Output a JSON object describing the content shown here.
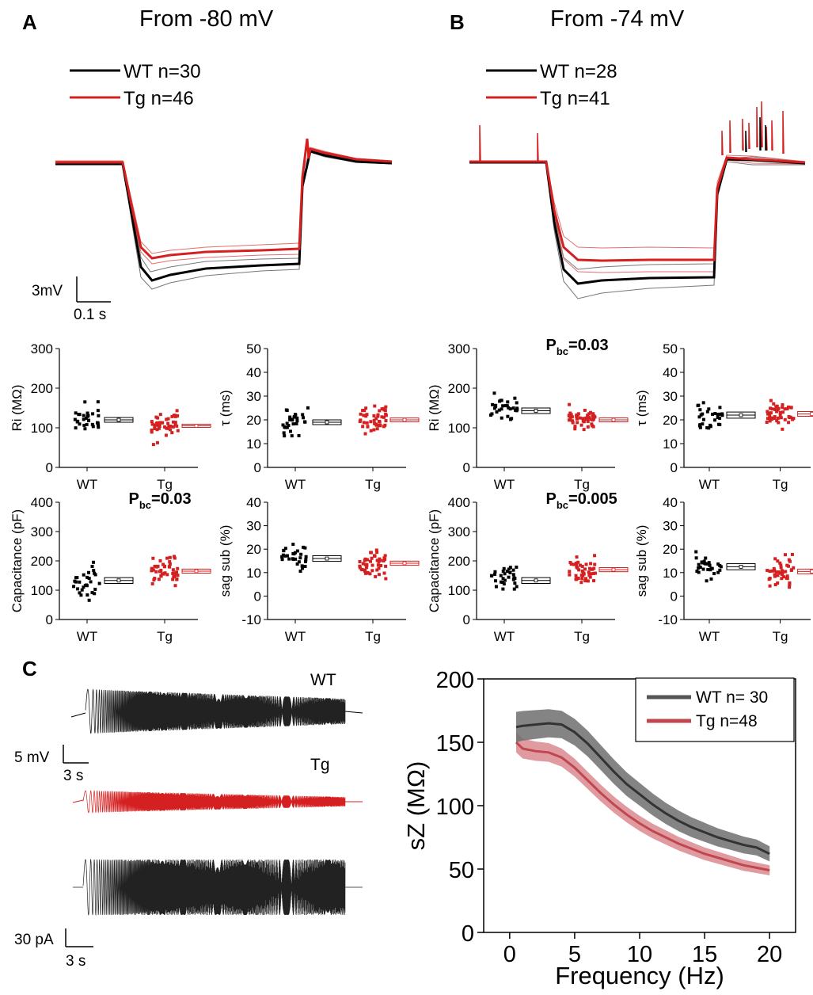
{
  "colors": {
    "wt": "#000000",
    "tg": "#d42020",
    "wt_band": "#555555",
    "tg_band": "#c0474f",
    "tg_fill": "#d98a8e",
    "wt_fill": "#6e6e6e"
  },
  "panel_a": {
    "letter": "A",
    "title": "From -80 mV",
    "legend": [
      "WT n=30",
      "Tg n=46"
    ],
    "scale": {
      "v": "3mV",
      "t": "0.1 s"
    }
  },
  "panel_b": {
    "letter": "B",
    "title": "From -74 mV",
    "legend": [
      "WT n=28",
      "Tg n=41"
    ]
  },
  "panel_c": {
    "letter": "C",
    "trace_wt_label": "WT",
    "trace_tg_label": "Tg",
    "scale_mv": {
      "v": "5 mV",
      "t": "3 s"
    },
    "scale_pa": {
      "v": "30 pA",
      "t": "3 s"
    }
  },
  "chart_data": [
    {
      "type": "scatter",
      "panel": "A",
      "ylabel_text": "Ri  (M",
      "ylabel_symbol": "Ω",
      "ylabel_end": ")",
      "ylim": [
        0,
        300
      ],
      "yticks": [
        "0",
        "100",
        "200",
        "300"
      ],
      "categories": [
        "WT",
        "Tg"
      ],
      "series": [
        {
          "name": "WT",
          "mean": 120,
          "sem": 6
        },
        {
          "name": "Tg",
          "mean": 105,
          "sem": 4
        }
      ]
    },
    {
      "type": "scatter",
      "panel": "A",
      "ylabel_text": "τ (ms)",
      "ylim": [
        0,
        50
      ],
      "yticks": [
        "0",
        "10",
        "20",
        "30",
        "40",
        "50"
      ],
      "categories": [
        "WT",
        "Tg"
      ],
      "series": [
        {
          "name": "WT",
          "mean": 19,
          "sem": 1
        },
        {
          "name": "Tg",
          "mean": 20,
          "sem": 0.8
        }
      ]
    },
    {
      "type": "scatter",
      "panel": "A",
      "ylabel_text": "Capacitance (pF)",
      "ylim": [
        0,
        400
      ],
      "yticks": [
        "0",
        "100",
        "200",
        "300",
        "400"
      ],
      "categories": [
        "WT",
        "Tg"
      ],
      "annotation": {
        "main": "P",
        "sub": "bc",
        "rest": "=0.03"
      },
      "series": [
        {
          "name": "WT",
          "mean": 133,
          "sem": 10
        },
        {
          "name": "Tg",
          "mean": 165,
          "sem": 7
        }
      ]
    },
    {
      "type": "scatter",
      "panel": "A",
      "ylabel_text": "sag sub (%)",
      "ylim": [
        -10,
        40
      ],
      "yticks": [
        "-10",
        "0",
        "10",
        "20",
        "30",
        "40"
      ],
      "categories": [
        "WT",
        "Tg"
      ],
      "series": [
        {
          "name": "WT",
          "mean": 16,
          "sem": 1.2
        },
        {
          "name": "Tg",
          "mean": 14,
          "sem": 0.9
        }
      ]
    },
    {
      "type": "scatter",
      "panel": "B",
      "ylabel_text": "Ri  (M",
      "ylabel_symbol": "Ω",
      "ylabel_end": ")",
      "ylim": [
        0,
        300
      ],
      "yticks": [
        "0",
        "100",
        "200",
        "300"
      ],
      "categories": [
        "WT",
        "Tg"
      ],
      "annotation": {
        "main": "P",
        "sub": "bc",
        "rest": "=0.03"
      },
      "series": [
        {
          "name": "WT",
          "mean": 143,
          "sem": 7
        },
        {
          "name": "Tg",
          "mean": 120,
          "sem": 5
        }
      ]
    },
    {
      "type": "scatter",
      "panel": "B",
      "ylabel_text": "τ (ms)",
      "ylim": [
        0,
        50
      ],
      "yticks": [
        "0",
        "10",
        "20",
        "30",
        "40",
        "50"
      ],
      "categories": [
        "WT",
        "Tg"
      ],
      "series": [
        {
          "name": "WT",
          "mean": 22,
          "sem": 1.3
        },
        {
          "name": "Tg",
          "mean": 22.5,
          "sem": 1
        }
      ]
    },
    {
      "type": "scatter",
      "panel": "B",
      "ylabel_text": "Capacitance (pF)",
      "ylim": [
        0,
        400
      ],
      "yticks": [
        "0",
        "100",
        "200",
        "300",
        "400"
      ],
      "categories": [
        "WT",
        "Tg"
      ],
      "annotation": {
        "main": "P",
        "sub": "bc",
        "rest": "=0.005"
      },
      "series": [
        {
          "name": "WT",
          "mean": 133,
          "sem": 10
        },
        {
          "name": "Tg",
          "mean": 170,
          "sem": 7
        }
      ]
    },
    {
      "type": "scatter",
      "panel": "B",
      "ylabel_text": "sag sub (%)",
      "ylim": [
        -10,
        40
      ],
      "yticks": [
        "-10",
        "0",
        "10",
        "20",
        "30",
        "40"
      ],
      "categories": [
        "WT",
        "Tg"
      ],
      "series": [
        {
          "name": "WT",
          "mean": 12.5,
          "sem": 1.3
        },
        {
          "name": "Tg",
          "mean": 10.5,
          "sem": 1
        }
      ]
    },
    {
      "type": "line",
      "panel": "C",
      "xlabel": "Frequency (Hz)",
      "ylabel_text": "sZ (M",
      "ylabel_symbol": "Ω",
      "ylabel_end": ")",
      "xlim": [
        -2,
        22
      ],
      "ylim": [
        0,
        200
      ],
      "xticks": [
        "0",
        "5",
        "10",
        "15",
        "20"
      ],
      "yticks": [
        "0",
        "50",
        "100",
        "150",
        "200"
      ],
      "legend_position": "top-right",
      "x": [
        0.5,
        1,
        2,
        3,
        4,
        5,
        6,
        7,
        8,
        9,
        10,
        11,
        12,
        13,
        14,
        15,
        16,
        17,
        18,
        19,
        20
      ],
      "series": [
        {
          "name": "WT n= 30",
          "values": [
            162,
            163,
            164,
            165,
            164,
            158,
            149,
            138,
            127,
            117,
            109,
            101,
            94,
            88,
            83,
            79,
            75,
            72,
            69,
            67,
            62
          ],
          "band": 12
        },
        {
          "name": "Tg n=48",
          "values": [
            150,
            145,
            143,
            142,
            138,
            130,
            120,
            110,
            101,
            93,
            86,
            80,
            75,
            70,
            66,
            62,
            59,
            56,
            53,
            51,
            49
          ],
          "band": 8
        }
      ]
    }
  ]
}
